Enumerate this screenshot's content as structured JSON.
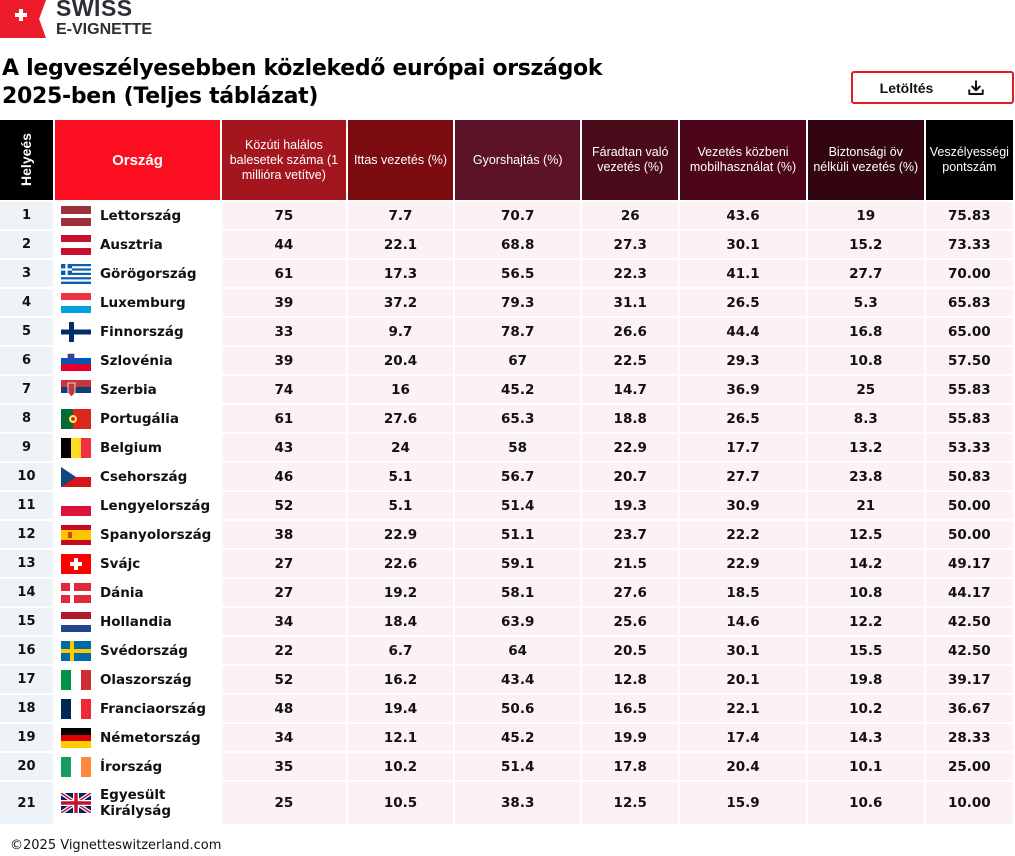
{
  "brand": {
    "line1": "SWISS",
    "line2": "E-VIGNETTE",
    "colors": {
      "red": "#ec1c2a",
      "text": "#2d2d33"
    }
  },
  "title": {
    "line1": "A legveszélyesebben közlekedő európai országok",
    "line2": "2025-ben (Teljes táblázat)"
  },
  "download_button": {
    "label": "Letöltés",
    "icon": "download-icon"
  },
  "table": {
    "headers": [
      {
        "label": "Helyeés",
        "bg": "#000000"
      },
      {
        "label": "Ország",
        "bg": "#fb0e1f"
      },
      {
        "label": "Közúti halálos balesetek száma (1 millióra vetítve)",
        "bg": "#a3161e"
      },
      {
        "label": "Ittas vezetés  (%)",
        "bg": "#7c0b0f"
      },
      {
        "label": "Gyorshajtás (%)",
        "bg": "#5b1226"
      },
      {
        "label": "Fáradtan való vezetés (%)",
        "bg": "#4a0a1a"
      },
      {
        "label": "Vezetés közbeni mobilhasználat (%)",
        "bg": "#4c0519"
      },
      {
        "label": "Biztonsági öv nélküli vezetés (%)",
        "bg": "#330510"
      },
      {
        "label": "Veszélyességi pontszám",
        "bg": "#000000"
      }
    ],
    "rows": [
      {
        "rank": "1",
        "country": "Lettország",
        "flag": "latvia",
        "fatalities": "75",
        "drunk": "7.7",
        "speeding": "70.7",
        "fatigue": "26",
        "phone": "43.6",
        "seatbelt": "19",
        "score": "75.83"
      },
      {
        "rank": "2",
        "country": "Ausztria",
        "flag": "austria",
        "fatalities": "44",
        "drunk": "22.1",
        "speeding": "68.8",
        "fatigue": "27.3",
        "phone": "30.1",
        "seatbelt": "15.2",
        "score": "73.33"
      },
      {
        "rank": "3",
        "country": "Görögország",
        "flag": "greece",
        "fatalities": "61",
        "drunk": "17.3",
        "speeding": "56.5",
        "fatigue": "22.3",
        "phone": "41.1",
        "seatbelt": "27.7",
        "score": "70.00"
      },
      {
        "rank": "4",
        "country": "Luxemburg",
        "flag": "luxembourg",
        "fatalities": "39",
        "drunk": "37.2",
        "speeding": "79.3",
        "fatigue": "31.1",
        "phone": "26.5",
        "seatbelt": "5.3",
        "score": "65.83"
      },
      {
        "rank": "5",
        "country": "Finnország",
        "flag": "finland",
        "fatalities": "33",
        "drunk": "9.7",
        "speeding": "78.7",
        "fatigue": "26.6",
        "phone": "44.4",
        "seatbelt": "16.8",
        "score": "65.00"
      },
      {
        "rank": "6",
        "country": "Szlovénia",
        "flag": "slovenia",
        "fatalities": "39",
        "drunk": "20.4",
        "speeding": "67",
        "fatigue": "22.5",
        "phone": "29.3",
        "seatbelt": "10.8",
        "score": "57.50"
      },
      {
        "rank": "7",
        "country": "Szerbia",
        "flag": "serbia",
        "fatalities": "74",
        "drunk": "16",
        "speeding": "45.2",
        "fatigue": "14.7",
        "phone": "36.9",
        "seatbelt": "25",
        "score": "55.83"
      },
      {
        "rank": "8",
        "country": "Portugália",
        "flag": "portugal",
        "fatalities": "61",
        "drunk": "27.6",
        "speeding": "65.3",
        "fatigue": "18.8",
        "phone": "26.5",
        "seatbelt": "8.3",
        "score": "55.83"
      },
      {
        "rank": "9",
        "country": "Belgium",
        "flag": "belgium",
        "fatalities": "43",
        "drunk": "24",
        "speeding": "58",
        "fatigue": "22.9",
        "phone": "17.7",
        "seatbelt": "13.2",
        "score": "53.33"
      },
      {
        "rank": "10",
        "country": "Csehország",
        "flag": "czechia",
        "fatalities": "46",
        "drunk": "5.1",
        "speeding": "56.7",
        "fatigue": "20.7",
        "phone": "27.7",
        "seatbelt": "23.8",
        "score": "50.83"
      },
      {
        "rank": "11",
        "country": "Lengyelország",
        "flag": "poland",
        "fatalities": "52",
        "drunk": "5.1",
        "speeding": "51.4",
        "fatigue": "19.3",
        "phone": "30.9",
        "seatbelt": "21",
        "score": "50.00"
      },
      {
        "rank": "12",
        "country": "Spanyolország",
        "flag": "spain",
        "fatalities": "38",
        "drunk": "22.9",
        "speeding": "51.1",
        "fatigue": "23.7",
        "phone": "22.2",
        "seatbelt": "12.5",
        "score": "50.00"
      },
      {
        "rank": "13",
        "country": "Svájc",
        "flag": "switzerland",
        "fatalities": "27",
        "drunk": "22.6",
        "speeding": "59.1",
        "fatigue": "21.5",
        "phone": "22.9",
        "seatbelt": "14.2",
        "score": "49.17"
      },
      {
        "rank": "14",
        "country": "Dánia",
        "flag": "denmark",
        "fatalities": "27",
        "drunk": "19.2",
        "speeding": "58.1",
        "fatigue": "27.6",
        "phone": "18.5",
        "seatbelt": "10.8",
        "score": "44.17"
      },
      {
        "rank": "15",
        "country": "Hollandia",
        "flag": "netherlands",
        "fatalities": "34",
        "drunk": "18.4",
        "speeding": "63.9",
        "fatigue": "25.6",
        "phone": "14.6",
        "seatbelt": "12.2",
        "score": "42.50"
      },
      {
        "rank": "16",
        "country": "Svédország",
        "flag": "sweden",
        "fatalities": "22",
        "drunk": "6.7",
        "speeding": "64",
        "fatigue": "20.5",
        "phone": "30.1",
        "seatbelt": "15.5",
        "score": "42.50"
      },
      {
        "rank": "17",
        "country": "Olaszország",
        "flag": "italy",
        "fatalities": "52",
        "drunk": "16.2",
        "speeding": "43.4",
        "fatigue": "12.8",
        "phone": "20.1",
        "seatbelt": "19.8",
        "score": "39.17"
      },
      {
        "rank": "18",
        "country": "Franciaország",
        "flag": "france",
        "fatalities": "48",
        "drunk": "19.4",
        "speeding": "50.6",
        "fatigue": "16.5",
        "phone": "22.1",
        "seatbelt": "10.2",
        "score": "36.67"
      },
      {
        "rank": "19",
        "country": "Németország",
        "flag": "germany",
        "fatalities": "34",
        "drunk": "12.1",
        "speeding": "45.2",
        "fatigue": "19.9",
        "phone": "17.4",
        "seatbelt": "14.3",
        "score": "28.33"
      },
      {
        "rank": "20",
        "country": "Írország",
        "flag": "ireland",
        "fatalities": "35",
        "drunk": "10.2",
        "speeding": "51.4",
        "fatigue": "17.8",
        "phone": "20.4",
        "seatbelt": "10.1",
        "score": "25.00"
      },
      {
        "rank": "21",
        "country": "Egyesült Királyság",
        "flag": "uk",
        "fatalities": "25",
        "drunk": "10.5",
        "speeding": "38.3",
        "fatigue": "12.5",
        "phone": "15.9",
        "seatbelt": "10.6",
        "score": "10.00"
      }
    ]
  },
  "footer": {
    "copyright": "©2025 Vignetteswitzerland.com"
  }
}
